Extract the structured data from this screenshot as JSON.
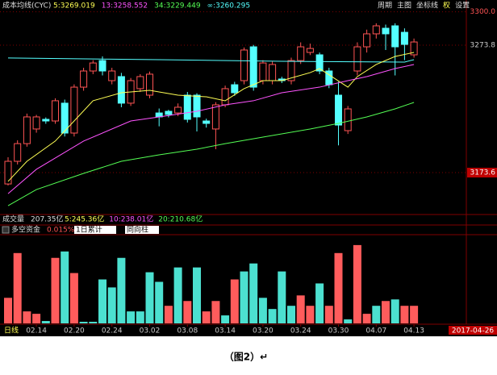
{
  "header": {
    "indicator": "成本均线(CYC)",
    "ma_labels": [
      {
        "text": "5:3269.019",
        "color": "#ffff54"
      },
      {
        "text": "13:3258.552",
        "color": "#ff54ff"
      },
      {
        "text": "34:3229.449",
        "color": "#54ff54"
      },
      {
        "text": "∞:3260.295",
        "color": "#54ffff"
      }
    ],
    "menu": [
      "周期",
      "主图",
      "坐标线",
      "权",
      "设置"
    ]
  },
  "volume_header": {
    "label": "成交量",
    "total": "207.35亿",
    "ma": [
      {
        "text": "5:245.36亿",
        "color": "#ffff54"
      },
      {
        "text": "10:238.01亿",
        "color": "#ff54ff"
      },
      {
        "text": "20:210.68亿",
        "color": "#54ff54"
      }
    ]
  },
  "flow_header": {
    "label": "多空资金",
    "ratio": "0.015%",
    "mode": "1日累计",
    "style": "同向柱"
  },
  "footer": {
    "period": "日线",
    "date": "2017-04-26"
  },
  "caption": "（图2）↵",
  "chart_data": {
    "type": "candlestick",
    "categories": [
      null,
      null,
      null,
      "02.14",
      null,
      null,
      null,
      "02.20",
      null,
      null,
      null,
      "02.24",
      null,
      null,
      null,
      "03.02",
      null,
      null,
      null,
      "03.08",
      null,
      null,
      null,
      "03.14",
      null,
      null,
      null,
      "03.20",
      null,
      null,
      null,
      "03.24",
      null,
      null,
      null,
      "03.30",
      null,
      null,
      null,
      "04.07",
      null,
      null,
      null,
      "04.13"
    ],
    "open": [
      3164.7,
      3182.5,
      3196.4,
      3207.9,
      3215.5,
      3214.2,
      3228.2,
      3204.7,
      3240.8,
      3253.5,
      3261.7,
      3245.9,
      3249.1,
      3228.2,
      3239.6,
      3234.5,
      3220.5,
      3221.8,
      3220.5,
      3234.5,
      3234.5,
      3214.2,
      3207.9,
      3226.9,
      3242.7,
      3245.9,
      3272.5,
      3245.9,
      3245.9,
      3247.2,
      3245.9,
      3261.7,
      3268.1,
      3266.2,
      3253.5,
      3234.5,
      3206.6,
      3253.5,
      3272.5,
      3282.7,
      3287.1,
      3289.0,
      3283.9,
      3266.2
    ],
    "high": [
      3185.7,
      3199,
      3220,
      3219,
      3217,
      3232,
      3231,
      3243,
      3256,
      3262,
      3265,
      3256,
      3252,
      3248,
      3251,
      3253,
      3224,
      3223,
      3228,
      3237,
      3236,
      3216,
      3229,
      3242,
      3245,
      3272,
      3274,
      3262,
      3261,
      3249,
      3264,
      3276,
      3275,
      3268,
      3256,
      3245,
      3226,
      3276,
      3286,
      3291,
      3290,
      3291,
      3287,
      3279
    ],
    "low": [
      3163.5,
      3180,
      3194,
      3205,
      3212,
      3212,
      3202,
      3202,
      3238,
      3251,
      3250,
      3243,
      3225,
      3226,
      3237,
      3232,
      3210,
      3217,
      3218,
      3213,
      3206,
      3209,
      3192,
      3225,
      3234,
      3243,
      3238,
      3243,
      3243,
      3244,
      3243,
      3259,
      3266,
      3251,
      3240,
      3195,
      3204,
      3250,
      3268,
      3279,
      3270,
      3250,
      3262,
      3264
    ],
    "close": [
      3182.5,
      3196.4,
      3217.4,
      3217.4,
      3214.2,
      3230.1,
      3204.7,
      3240.8,
      3253.5,
      3259.8,
      3253.5,
      3253.5,
      3228.2,
      3245.9,
      3249.1,
      3251.0,
      3217.4,
      3219.3,
      3225.0,
      3215.5,
      3217.4,
      3212.3,
      3226.9,
      3239.6,
      3236.4,
      3270.0,
      3240.8,
      3259.8,
      3258.6,
      3245.9,
      3261.7,
      3272.5,
      3271.2,
      3253.5,
      3242.7,
      3211.0,
      3223.7,
      3272.5,
      3282.7,
      3289.0,
      3282.7,
      3272.5,
      3274.4,
      3276.3
    ],
    "up_color": "#ff5454",
    "down_color": "#54ffff",
    "lines": [
      {
        "color": "#54ffff",
        "x": [
          0,
          16,
          29,
          42,
          43
        ],
        "values": [
          3263.7,
          3262.4,
          3261.1,
          3260.5,
          3262.4
        ]
      },
      {
        "color": "#ffff54",
        "x": [
          0,
          2,
          5,
          7,
          9,
          12,
          15,
          18,
          21,
          23,
          25,
          27,
          29,
          32,
          33,
          36,
          37,
          39,
          41,
          43
        ],
        "values": [
          3166.7,
          3182.5,
          3198.4,
          3214.2,
          3230.1,
          3236.4,
          3238.3,
          3234.5,
          3233.2,
          3230.1,
          3239.6,
          3245.9,
          3245.9,
          3252.2,
          3255.4,
          3240.8,
          3249.1,
          3258.6,
          3264.9,
          3268.1
        ]
      },
      {
        "color": "#ff54ff",
        "x": [
          0,
          3,
          8,
          13,
          16,
          20,
          23,
          26,
          29,
          33,
          36,
          38,
          41,
          43
        ],
        "values": [
          3157.1,
          3176.2,
          3198.4,
          3214.2,
          3217.4,
          3221.8,
          3226.9,
          3230.1,
          3236.4,
          3240.8,
          3245.9,
          3249.1,
          3255.4,
          3258.6
        ]
      },
      {
        "color": "#54ff54",
        "x": [
          0,
          3,
          8,
          12,
          16,
          20,
          23,
          27,
          32,
          35,
          38,
          41,
          43
        ],
        "values": [
          3147.6,
          3160.3,
          3173.0,
          3182.5,
          3187.6,
          3192.0,
          3196.4,
          3201.5,
          3207.9,
          3212.3,
          3217.4,
          3223.7,
          3228.8
        ]
      }
    ],
    "ylim": [
      3141.3,
      3309.3
    ],
    "yticks": [
      {
        "value": 3300,
        "label": "3300.0"
      },
      3273.8,
      3173.6
    ],
    "flow": {
      "values": [
        32,
        88,
        15,
        12,
        3,
        82,
        90,
        63,
        2,
        2,
        55,
        45,
        82,
        15,
        15,
        64,
        52,
        22,
        70,
        28,
        70,
        15,
        28,
        10,
        55,
        65,
        75,
        32,
        18,
        65,
        22,
        35,
        22,
        50,
        22,
        88,
        5,
        98,
        12,
        22,
        28,
        30,
        22,
        22
      ],
      "colors": [
        "#ff5c5c",
        "#ff5c5c",
        "#ff5c5c",
        "#ff5c5c",
        "#4ce0d0",
        "#ff5c5c",
        "#4ce0d0",
        "#ff5c5c",
        "#4ce0d0",
        "#4ce0d0",
        "#4ce0d0",
        "#4ce0d0",
        "#4ce0d0",
        "#4ce0d0",
        "#4ce0d0",
        "#4ce0d0",
        "#4ce0d0",
        "#ff5c5c",
        "#4ce0d0",
        "#ff5c5c",
        "#4ce0d0",
        "#ff5c5c",
        "#ff5c5c",
        "#4ce0d0",
        "#ff5c5c",
        "#4ce0d0",
        "#4ce0d0",
        "#4ce0d0",
        "#4ce0d0",
        "#4ce0d0",
        "#4ce0d0",
        "#ff5c5c",
        "#ff5c5c",
        "#4ce0d0",
        "#ff5c5c",
        "#ff5c5c",
        "#4ce0d0",
        "#ff5c5c",
        "#ff5c5c",
        "#4ce0d0",
        "#ff5c5c",
        "#4ce0d0",
        "#ff5c5c",
        "#ff5c5c"
      ],
      "ylim": [
        0,
        110
      ]
    }
  }
}
